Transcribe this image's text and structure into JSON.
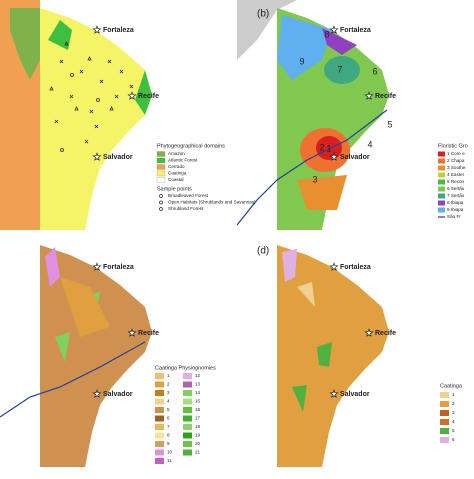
{
  "panel_a": {
    "cities": [
      "Fortaleza",
      "Recife",
      "Salvador"
    ],
    "legend": {
      "title": "Phytogeographical domains",
      "items": [
        {
          "text": "Amazon",
          "color": "#7fb24a"
        },
        {
          "text": "Atlantic Forest",
          "color": "#3fbf3f"
        },
        {
          "text": "Cerrado",
          "color": "#f0a050"
        },
        {
          "text": "Caatinga",
          "color": "#f4f466"
        },
        {
          "text": "Coastal",
          "color": "#ffffff"
        }
      ],
      "points_title": "Sample points",
      "points": [
        "Broadleaved Forest",
        "Open Habitats (Shrublands and Savannas)",
        "Shrubland Forest"
      ]
    }
  },
  "panel_b": {
    "label": "(b)",
    "cities": [
      "Fortaleza",
      "Recife",
      "Salvador"
    ],
    "zones": [
      "8",
      "9",
      "7",
      "6",
      "5",
      "2",
      "1",
      "4",
      "3"
    ],
    "legend": {
      "title": "Floristic Gro",
      "items": [
        {
          "text": "1 Core e",
          "color": "#d62020"
        },
        {
          "text": "2 Chapa",
          "color": "#f07030"
        },
        {
          "text": "3 Southe",
          "color": "#e89030"
        },
        {
          "text": "4 Easter",
          "color": "#c0d040"
        },
        {
          "text": "5 Recon",
          "color": "#50b848"
        },
        {
          "text": "6 Sertão",
          "color": "#80c850"
        },
        {
          "text": "7 Sertão",
          "color": "#40a880"
        },
        {
          "text": "8 Ibiapa",
          "color": "#9040c0"
        },
        {
          "text": "9 Ibiapa",
          "color": "#60b0f0"
        }
      ],
      "river": "São Fr"
    }
  },
  "panel_c": {
    "cities": [
      "Fortaleza",
      "Recife",
      "Salvador"
    ],
    "legend": {
      "title": "Caatinga Physiognomies",
      "items": [
        {
          "text": "1",
          "color": "#f0c070"
        },
        {
          "text": "2",
          "color": "#e0a040"
        },
        {
          "text": "3",
          "color": "#c08020"
        },
        {
          "text": "4",
          "color": "#f0d090"
        },
        {
          "text": "5",
          "color": "#d09050"
        },
        {
          "text": "6",
          "color": "#a06020"
        },
        {
          "text": "7",
          "color": "#e8b860"
        },
        {
          "text": "8",
          "color": "#f4e0a0"
        },
        {
          "text": "9",
          "color": "#d0a060"
        },
        {
          "text": "10",
          "color": "#e090e0"
        },
        {
          "text": "11",
          "color": "#c060c0"
        },
        {
          "text": "12",
          "color": "#e0b0e0"
        },
        {
          "text": "13",
          "color": "#b060b0"
        },
        {
          "text": "14",
          "color": "#80d060"
        },
        {
          "text": "15",
          "color": "#a0e080"
        },
        {
          "text": "16",
          "color": "#60c040"
        },
        {
          "text": "17",
          "color": "#40b030"
        },
        {
          "text": "18",
          "color": "#90d070"
        },
        {
          "text": "19",
          "color": "#30a020"
        },
        {
          "text": "20",
          "color": "#70c050"
        },
        {
          "text": "21",
          "color": "#50b040"
        }
      ]
    }
  },
  "panel_d": {
    "label": "(d)",
    "cities": [
      "Fortaleza",
      "Recife",
      "Salvador"
    ],
    "legend": {
      "title": "Caatinga",
      "items": [
        {
          "text": "1",
          "color": "#f0d090"
        },
        {
          "text": "2",
          "color": "#e0a040"
        },
        {
          "text": "3",
          "color": "#c06020"
        },
        {
          "text": "4",
          "color": "#d07020"
        },
        {
          "text": "5",
          "color": "#50b040"
        },
        {
          "text": "6",
          "color": "#e0b0e0"
        }
      ]
    }
  }
}
